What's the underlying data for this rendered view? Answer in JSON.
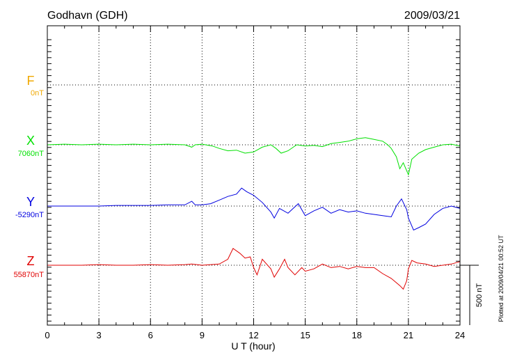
{
  "header": {
    "station": "Godhavn (GDH)",
    "date": "2009/03/21"
  },
  "footer": {
    "xlabel": "U T (hour)",
    "plotted": "Plotted at 2009/04/21 00:52 UT"
  },
  "scale": {
    "label": "500 nT",
    "value_nT": 500
  },
  "chart_data": {
    "type": "line",
    "title": "Godhavn (GDH)",
    "date": "2009/03/21",
    "xlabel": "U T (hour)",
    "xlim": [
      0,
      24
    ],
    "xticks": [
      0,
      3,
      6,
      9,
      12,
      15,
      18,
      21,
      24
    ],
    "xtick_labels": [
      "0",
      "3",
      "6",
      "9",
      "12",
      "15",
      "18",
      "21",
      "24"
    ],
    "grid": true,
    "scale_bar_nT": 500,
    "series": [
      {
        "name": "F",
        "baseline_label": "0nT",
        "color": "#f0a800",
        "values": []
      },
      {
        "name": "X",
        "baseline_label": "7060nT",
        "color": "#00e000",
        "values": [
          [
            0,
            0
          ],
          [
            1,
            5
          ],
          [
            2,
            0
          ],
          [
            3,
            5
          ],
          [
            4,
            0
          ],
          [
            5,
            5
          ],
          [
            6,
            0
          ],
          [
            7,
            5
          ],
          [
            8,
            0
          ],
          [
            8.4,
            -20
          ],
          [
            8.6,
            0
          ],
          [
            9,
            5
          ],
          [
            9.6,
            -10
          ],
          [
            10,
            -30
          ],
          [
            10.5,
            -50
          ],
          [
            11,
            -45
          ],
          [
            11.5,
            -70
          ],
          [
            12,
            -60
          ],
          [
            12.5,
            -20
          ],
          [
            13,
            0
          ],
          [
            13.3,
            -30
          ],
          [
            13.6,
            -70
          ],
          [
            14,
            -50
          ],
          [
            14.5,
            0
          ],
          [
            15,
            -10
          ],
          [
            15.5,
            -5
          ],
          [
            16,
            -15
          ],
          [
            16.5,
            10
          ],
          [
            17,
            20
          ],
          [
            17.5,
            30
          ],
          [
            18,
            50
          ],
          [
            18.5,
            60
          ],
          [
            19,
            45
          ],
          [
            19.5,
            30
          ],
          [
            19.8,
            0
          ],
          [
            20,
            -30
          ],
          [
            20.3,
            -100
          ],
          [
            20.5,
            -200
          ],
          [
            20.7,
            -150
          ],
          [
            21,
            -250
          ],
          [
            21.2,
            -120
          ],
          [
            21.6,
            -70
          ],
          [
            22,
            -40
          ],
          [
            22.5,
            -20
          ],
          [
            23,
            0
          ],
          [
            23.5,
            5
          ],
          [
            24,
            -10
          ]
        ]
      },
      {
        "name": "Y",
        "baseline_label": "-5290nT",
        "color": "#0000e0",
        "values": [
          [
            0,
            0
          ],
          [
            1,
            0
          ],
          [
            2,
            0
          ],
          [
            3,
            0
          ],
          [
            4,
            5
          ],
          [
            5,
            5
          ],
          [
            6,
            5
          ],
          [
            7,
            10
          ],
          [
            8,
            10
          ],
          [
            8.4,
            40
          ],
          [
            8.6,
            10
          ],
          [
            9,
            10
          ],
          [
            9.5,
            20
          ],
          [
            10,
            50
          ],
          [
            10.5,
            80
          ],
          [
            11,
            100
          ],
          [
            11.3,
            150
          ],
          [
            11.6,
            120
          ],
          [
            12,
            90
          ],
          [
            12.5,
            30
          ],
          [
            13,
            -50
          ],
          [
            13.2,
            -100
          ],
          [
            13.5,
            -20
          ],
          [
            14,
            -60
          ],
          [
            14.3,
            -20
          ],
          [
            14.6,
            20
          ],
          [
            15,
            -80
          ],
          [
            15.5,
            -40
          ],
          [
            16,
            -10
          ],
          [
            16.5,
            -60
          ],
          [
            17,
            -30
          ],
          [
            17.5,
            -50
          ],
          [
            18,
            -40
          ],
          [
            18.5,
            -60
          ],
          [
            19,
            -70
          ],
          [
            19.5,
            -80
          ],
          [
            20,
            -90
          ],
          [
            20.3,
            0
          ],
          [
            20.6,
            60
          ],
          [
            20.9,
            -30
          ],
          [
            21,
            -100
          ],
          [
            21.3,
            -200
          ],
          [
            21.6,
            -180
          ],
          [
            22,
            -150
          ],
          [
            22.5,
            -70
          ],
          [
            23,
            -20
          ],
          [
            23.5,
            0
          ],
          [
            24,
            -20
          ]
        ]
      },
      {
        "name": "Z",
        "baseline_label": "55870nT",
        "color": "#e00000",
        "values": [
          [
            0,
            0
          ],
          [
            1,
            0
          ],
          [
            2,
            0
          ],
          [
            3,
            5
          ],
          [
            4,
            0
          ],
          [
            5,
            0
          ],
          [
            6,
            5
          ],
          [
            7,
            0
          ],
          [
            8,
            5
          ],
          [
            8.4,
            10
          ],
          [
            9,
            0
          ],
          [
            9.5,
            5
          ],
          [
            10,
            10
          ],
          [
            10.5,
            50
          ],
          [
            10.8,
            140
          ],
          [
            11.2,
            100
          ],
          [
            11.5,
            60
          ],
          [
            11.8,
            70
          ],
          [
            12,
            -20
          ],
          [
            12.2,
            -80
          ],
          [
            12.5,
            50
          ],
          [
            13,
            -30
          ],
          [
            13.2,
            -100
          ],
          [
            13.5,
            -30
          ],
          [
            13.8,
            50
          ],
          [
            14,
            -20
          ],
          [
            14.4,
            -80
          ],
          [
            14.8,
            -20
          ],
          [
            15,
            -50
          ],
          [
            15.5,
            -30
          ],
          [
            16,
            10
          ],
          [
            16.5,
            -20
          ],
          [
            17,
            -10
          ],
          [
            17.5,
            -30
          ],
          [
            18,
            -10
          ],
          [
            18.5,
            -20
          ],
          [
            19,
            -20
          ],
          [
            19.5,
            -70
          ],
          [
            20,
            -110
          ],
          [
            20.5,
            -170
          ],
          [
            20.7,
            -200
          ],
          [
            20.9,
            -130
          ],
          [
            21,
            -30
          ],
          [
            21.2,
            40
          ],
          [
            21.5,
            20
          ],
          [
            22,
            10
          ],
          [
            22.5,
            -10
          ],
          [
            23,
            0
          ],
          [
            23.5,
            10
          ],
          [
            24,
            30
          ]
        ]
      }
    ]
  }
}
